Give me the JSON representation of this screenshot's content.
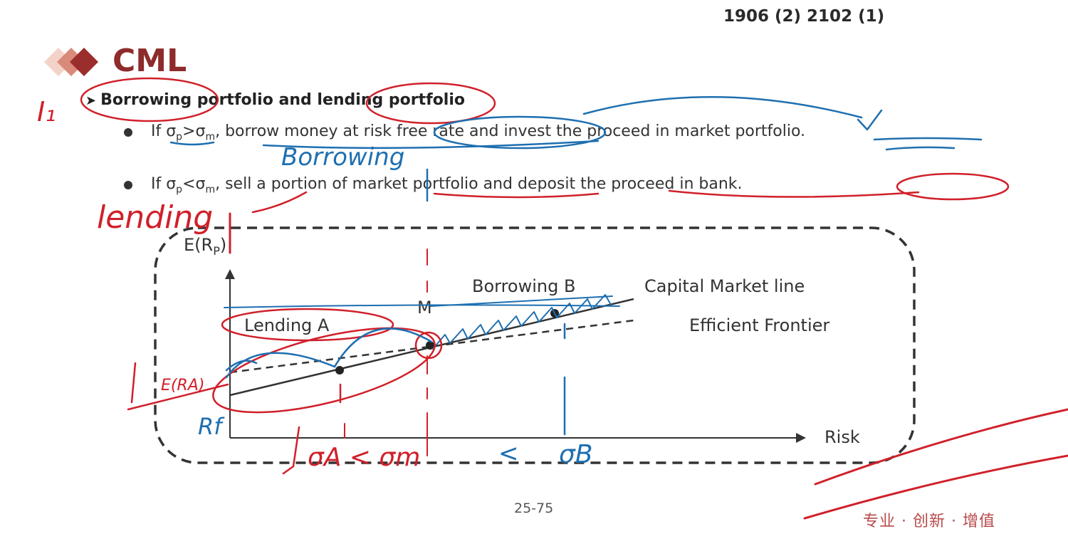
{
  "header": {
    "exam_code": "1906 (2) 2102 (1)"
  },
  "slide": {
    "title": "CML",
    "heading": "Borrowing portfolio and lending portfolio",
    "heading_arrow": "➤",
    "bullets": [
      {
        "prefix": "If σ",
        "sub1": "p",
        "op": ">σ",
        "sub2": "m",
        "rest": ", borrow money at risk free rate and invest the proceed in market portfolio."
      },
      {
        "prefix": "If σ",
        "sub1": "p",
        "op": "<σ",
        "sub2": "m",
        "rest": ", sell a portion of market portfolio and deposit the proceed in bank."
      }
    ]
  },
  "diagram": {
    "y_axis_label": "E(R",
    "y_axis_sub": "P",
    "y_axis_close": ")",
    "x_axis_label": "Risk",
    "point_lending": "Lending  A",
    "point_market": "M",
    "point_borrowing": "Borrowing  B",
    "cml_label": "Capital Market line",
    "frontier_label": "Efficient Frontier"
  },
  "handwriting": {
    "step": "I₁",
    "borrowing": "Borrowing",
    "lending": "lending",
    "erf": "E(RA)",
    "rf": "Rf",
    "sigma_a_lt_sigma_m": "σA < σm",
    "lt": "<",
    "sigma_b": "σB"
  },
  "footer": {
    "page": "25-75",
    "slogan": "专业 · 创新 · 增值"
  },
  "colors": {
    "title": "#8e2b2b",
    "ink_red": "#d0202a",
    "ink_blue": "#1e6fb0",
    "footer": "#b84a4a"
  }
}
